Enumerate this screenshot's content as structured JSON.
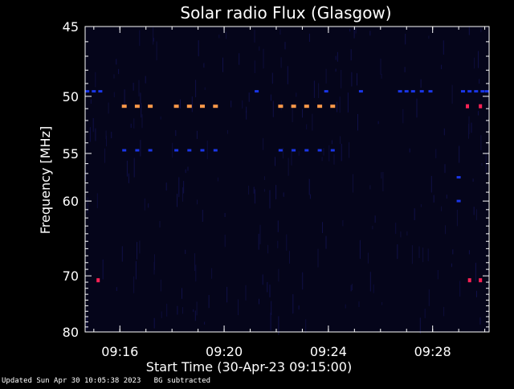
{
  "chart_data": {
    "type": "heatmap",
    "title": "Solar radio Flux (Glasgow)",
    "xlabel": "Start Time (30-Apr-23 09:15:00)",
    "ylabel": "Frequency [MHz]",
    "x_unit": "minutes",
    "x_range": [
      "09:14:40",
      "09:30:10"
    ],
    "x_ticks": [
      "09:16",
      "09:20",
      "09:24",
      "09:28"
    ],
    "y_scale": "reciprocal",
    "y_range": [
      45,
      80
    ],
    "y_ticks": [
      45,
      50,
      55,
      60,
      70,
      80
    ],
    "background_color": "#05051a",
    "colors": {
      "strong": "#ff9a4a",
      "medium": "#1a36e8",
      "hot": "#ff2255",
      "weak": "#2a2aa0"
    },
    "features": [
      {
        "name": "orange-51",
        "freq": 50.8,
        "intensity": "strong",
        "times": [
          "09:16:10",
          "09:16:40",
          "09:17:10",
          "09:18:10",
          "09:18:40",
          "09:19:10",
          "09:19:40",
          "09:22:10",
          "09:22:40",
          "09:23:10",
          "09:23:40",
          "09:24:10"
        ]
      },
      {
        "name": "blue-54.7",
        "freq": 54.7,
        "intensity": "medium",
        "times": [
          "09:16:10",
          "09:16:40",
          "09:17:10",
          "09:18:10",
          "09:18:40",
          "09:19:10",
          "09:19:40",
          "09:22:10",
          "09:22:40",
          "09:23:10",
          "09:23:40",
          "09:24:10"
        ]
      },
      {
        "name": "blue-49.6",
        "freq": 49.6,
        "intensity": "medium",
        "times": [
          "09:14:45",
          "09:15:00",
          "09:15:15",
          "09:21:15",
          "09:23:55",
          "09:25:15",
          "09:26:45",
          "09:27:00",
          "09:27:15",
          "09:27:35",
          "09:27:55",
          "09:29:10",
          "09:29:25",
          "09:29:40",
          "09:29:55",
          "09:30:05"
        ]
      },
      {
        "name": "hot-51",
        "freq": 50.8,
        "intensity": "hot",
        "times": [
          "09:29:20",
          "09:29:50"
        ]
      },
      {
        "name": "hot-71",
        "freq": 70.7,
        "intensity": "hot",
        "times": [
          "09:15:10",
          "09:29:25",
          "09:29:50"
        ]
      },
      {
        "name": "blue-57",
        "freq": 57.4,
        "intensity": "medium",
        "times": [
          "09:29:00"
        ]
      },
      {
        "name": "blue-60",
        "freq": 60.0,
        "intensity": "medium",
        "times": [
          "09:29:00"
        ]
      }
    ]
  },
  "footer": "Updated Sun Apr 30 10:05:38 2023   BG subtracted"
}
